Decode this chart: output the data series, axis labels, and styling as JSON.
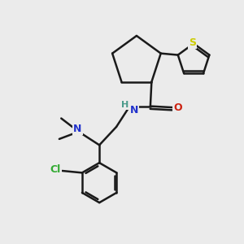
{
  "background_color": "#ebebeb",
  "atom_colors": {
    "C": "#1a1a1a",
    "H": "#4a9a8a",
    "N": "#2233cc",
    "O": "#cc2211",
    "Cl": "#33aa33",
    "S": "#cccc00"
  },
  "bond_color": "#1a1a1a",
  "bond_width": 1.8,
  "figsize": [
    3.0,
    3.0
  ],
  "dpi": 100
}
